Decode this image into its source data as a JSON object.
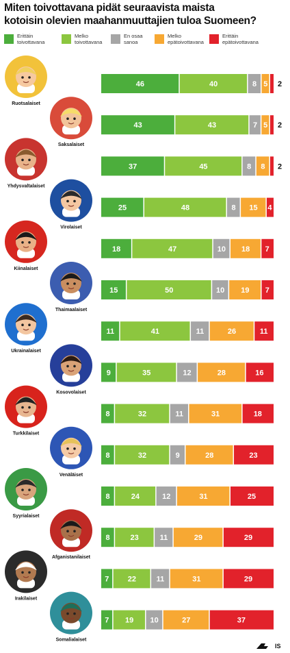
{
  "title_lines": [
    "Miten toivottavana pidät seuraavista maista",
    "kotoisin olevien maahanmuuttajien tuloa Suomeen?"
  ],
  "legend": [
    {
      "label": "Erittäin\ntoivottavana",
      "color": "#4cae3c"
    },
    {
      "label": "Melko\ntoivottavana",
      "color": "#8cc63f"
    },
    {
      "label": "En osaa\nsanoa",
      "color": "#a6a6a6"
    },
    {
      "label": "Melko\nepätoivottavana",
      "color": "#f7a833"
    },
    {
      "label": "Erittäin\nepätoivottavana",
      "color": "#e2222b"
    }
  ],
  "chart_data": {
    "type": "bar",
    "stacked": true,
    "orientation": "horizontal",
    "title": "Miten toivottavana pidät seuraavista maista kotoisin olevien maahanmuuttajien tuloa Suomeen?",
    "unit": "%",
    "categories": [
      "Ruotsalaiset",
      "Saksalaiset",
      "Yhdysvaltalaiset",
      "Virolaiset",
      "Kiinalaiset",
      "Thaimaalaiset",
      "Ukrainalaiset",
      "Kosovolaiset",
      "Turkkilaiset",
      "Venäläiset",
      "Syyrialaiset",
      "Afganistanilaiset",
      "Irakilaiset",
      "Somalialaiset"
    ],
    "series": [
      {
        "name": "Erittäin toivottavana",
        "color": "#4cae3c",
        "values": [
          46,
          43,
          37,
          25,
          18,
          15,
          11,
          9,
          8,
          8,
          8,
          8,
          7,
          7
        ]
      },
      {
        "name": "Melko toivottavana",
        "color": "#8cc63f",
        "values": [
          40,
          43,
          45,
          48,
          47,
          50,
          41,
          35,
          32,
          32,
          24,
          23,
          22,
          19
        ]
      },
      {
        "name": "En osaa sanoa",
        "color": "#a6a6a6",
        "values": [
          8,
          7,
          8,
          8,
          10,
          10,
          11,
          12,
          11,
          9,
          12,
          11,
          11,
          10
        ]
      },
      {
        "name": "Melko epätoivottavana",
        "color": "#f7a833",
        "values": [
          5,
          5,
          8,
          15,
          18,
          19,
          26,
          28,
          31,
          28,
          31,
          29,
          31,
          27
        ]
      },
      {
        "name": "Erittäin epätoivottavana",
        "color": "#e2222b",
        "values": [
          2,
          2,
          2,
          4,
          7,
          7,
          11,
          16,
          18,
          23,
          25,
          29,
          29,
          37
        ]
      }
    ],
    "grid": false,
    "legend_position": "top"
  },
  "logo_text": "IS"
}
